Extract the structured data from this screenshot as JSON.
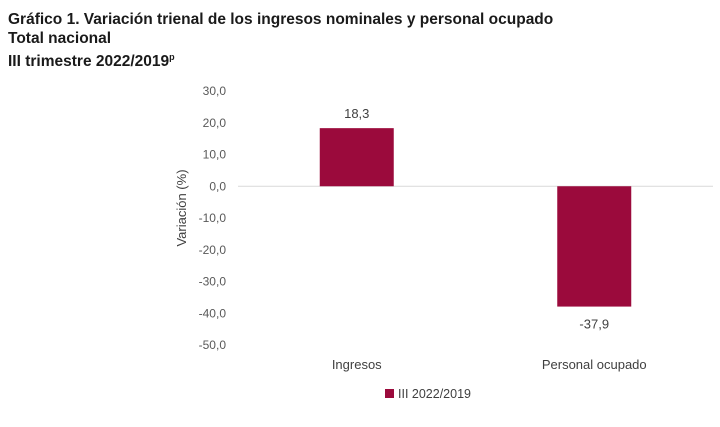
{
  "header": {
    "title_line1": "Gráfico 1. Variación trienal de los ingresos nominales y personal ocupado",
    "title_line2": "Total nacional",
    "title_line3": "III trimestre 2022/2019",
    "title_sup": "p"
  },
  "chart_data": {
    "type": "bar",
    "categories": [
      "Ingresos",
      "Personal ocupado"
    ],
    "series": [
      {
        "name": "III 2022/2019",
        "values": [
          18.3,
          -37.9
        ],
        "color": "#9b0a3c"
      }
    ],
    "data_labels": [
      "18,3",
      "-37,9"
    ],
    "ylabel": "Variación (%)",
    "ylim": [
      -50,
      30
    ],
    "yticks": [
      30,
      20,
      10,
      0,
      -10,
      -20,
      -30,
      -40,
      -50
    ],
    "ytick_labels": [
      "30,0",
      "20,0",
      "10,0",
      "0,0",
      "-10,0",
      "-20,0",
      "-30,0",
      "-40,0",
      "-50,0"
    ],
    "grid": false,
    "legend_position": "bottom",
    "axis_color": "#d9d9d9"
  }
}
